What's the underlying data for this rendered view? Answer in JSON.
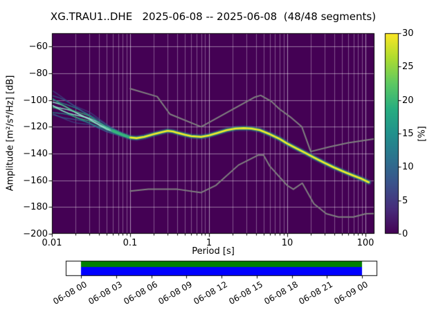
{
  "title": "XG.TRAU1..DHE   2025-06-08 -- 2025-06-08  (48/48 segments)",
  "axes": {
    "xlabel": "Period [s]",
    "ylabel": "Amplitude [m²/s⁴/Hz] [dB]",
    "x_tick_labels": [
      "0.01",
      "0.1",
      "1",
      "10",
      "100"
    ],
    "y_tick_labels": [
      "−60",
      "−80",
      "−100",
      "−120",
      "−140",
      "−160",
      "−180",
      "−200"
    ]
  },
  "colorbar": {
    "label": "[%]",
    "min": 0,
    "max": 30,
    "tick_labels": [
      "0",
      "5",
      "10",
      "15",
      "20",
      "25",
      "30"
    ],
    "gradient_stops": [
      "#440154",
      "#472d7b",
      "#3b528b",
      "#2c728e",
      "#21918c",
      "#28ae80",
      "#5ec962",
      "#addc30",
      "#fde725"
    ]
  },
  "timeline": {
    "labels": [
      "06-08 00",
      "06-08 03",
      "06-08 06",
      "06-08 09",
      "06-08 12",
      "06-08 15",
      "06-08 18",
      "06-08 21",
      "06-09 00"
    ],
    "data_color": "#0000ff",
    "coverage_color": "#008000"
  },
  "chart_data": {
    "type": "heatmap",
    "title": "XG.TRAU1..DHE 2025-06-08 -- 2025-06-08 (48/48 segments)",
    "xlabel": "Period [s]",
    "ylabel": "Amplitude [m²/s⁴/Hz] [dB]",
    "xscale": "log",
    "xlim": [
      0.01,
      130
    ],
    "ylim": [
      -200,
      -50
    ],
    "x_ticks": [
      0.01,
      0.1,
      1,
      10,
      100
    ],
    "y_ticks": [
      -200,
      -180,
      -160,
      -140,
      -120,
      -100,
      -80,
      -60
    ],
    "colorbar_range": [
      0,
      30
    ],
    "colorbar_label": "[%]",
    "background_value_color": "#440154",
    "grid": true,
    "series": [
      {
        "name": "psd-mode",
        "role": "histogram-mode-curve",
        "color": "#fde725",
        "x": [
          0.01,
          0.015,
          0.02,
          0.03,
          0.04,
          0.05,
          0.06,
          0.08,
          0.1,
          0.12,
          0.15,
          0.2,
          0.25,
          0.3,
          0.35,
          0.4,
          0.5,
          0.6,
          0.8,
          1.0,
          1.3,
          1.7,
          2.2,
          2.8,
          3.5,
          4.5,
          6,
          8,
          10,
          13,
          17,
          22,
          30,
          40,
          55,
          70,
          90,
          110
        ],
        "y": [
          -103,
          -107,
          -110,
          -114,
          -118,
          -121,
          -123,
          -126,
          -128,
          -128.5,
          -127.5,
          -125.5,
          -124,
          -123,
          -123.5,
          -124.5,
          -126,
          -127,
          -127.5,
          -126.5,
          -124.5,
          -122.5,
          -121.3,
          -121,
          -121.3,
          -122.5,
          -125.5,
          -129,
          -132.5,
          -136,
          -139.5,
          -143,
          -147,
          -150.5,
          -154,
          -156.5,
          -159,
          -161.5
        ]
      },
      {
        "name": "psd-spread-low-periods",
        "role": "histogram-spread",
        "x_range": [
          0.01,
          0.12
        ],
        "offsets_db": [
          -9,
          -7,
          -5,
          -3,
          -1.5,
          0,
          1.5,
          3,
          5,
          7,
          9
        ]
      },
      {
        "name": "noise-model-high",
        "role": "peterson-high-noise-model",
        "color": "#808080",
        "x": [
          0.1,
          0.22,
          0.32,
          0.8,
          3.8,
          4.6,
          6.3,
          7.9,
          10.9,
          15.4,
          20,
          35,
          60,
          100,
          130
        ],
        "y": [
          -91.5,
          -97.4,
          -110.5,
          -120.0,
          -98.0,
          -96.5,
          -101.0,
          -106.5,
          -112.5,
          -120.0,
          -138.5,
          -135.0,
          -132.0,
          -130.0,
          -129.0
        ]
      },
      {
        "name": "noise-model-low",
        "role": "peterson-low-noise-model",
        "color": "#808080",
        "x": [
          0.1,
          0.17,
          0.4,
          0.8,
          1.24,
          2.4,
          4.3,
          5,
          6,
          10,
          12,
          15.6,
          21.9,
          31.6,
          45,
          70,
          101,
          130
        ],
        "y": [
          -168.0,
          -166.7,
          -166.7,
          -169.2,
          -163.7,
          -148.6,
          -141.1,
          -141.1,
          -149.4,
          -163.8,
          -166.7,
          -162.1,
          -177.5,
          -185.0,
          -187.5,
          -187.5,
          -185.0,
          -184.9
        ]
      }
    ]
  }
}
